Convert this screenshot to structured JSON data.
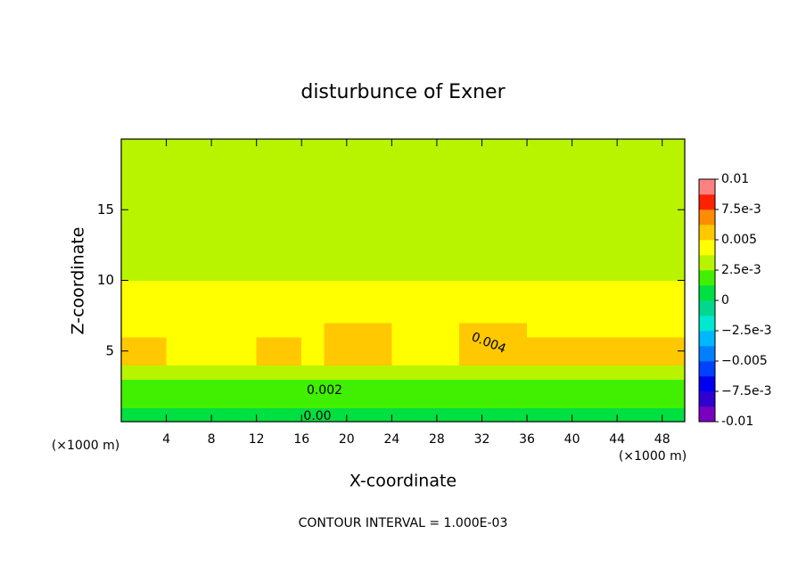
{
  "chart_data": {
    "type": "contour",
    "title": "disturbunce of Exner",
    "x_label": "X-coordinate",
    "y_label": "Z-coordinate",
    "x_unit_label": "(×1000 m)",
    "footer": "CONTOUR INTERVAL = 1.000E-03",
    "xlim": [
      0,
      50
    ],
    "ylim": [
      0,
      20
    ],
    "xticks": [
      4,
      8,
      12,
      16,
      20,
      24,
      28,
      32,
      36,
      40,
      44,
      48
    ],
    "yticks": [
      5,
      10,
      15
    ],
    "x": [
      1,
      3,
      5,
      7,
      9,
      11,
      13,
      15,
      17,
      19,
      21,
      23,
      25,
      27,
      29,
      31,
      33,
      35,
      37,
      39,
      41,
      43,
      45,
      47,
      49
    ],
    "y": [
      0.5,
      1.5,
      2.5,
      3.5,
      4.5,
      5.5,
      6.5,
      7.5,
      8.5,
      9.5,
      10.5,
      11.5,
      12.5,
      13.5,
      14.5,
      15.5,
      16.5,
      17.5,
      18.5,
      19.5
    ],
    "z": [
      [
        0.0004,
        0.0004,
        0.0004,
        0.0004,
        0.0004,
        0.0004,
        0.0004,
        0.0004,
        0.0004,
        0.0004,
        0.0004,
        0.0004,
        0.0004,
        0.0004,
        0.0004,
        0.0004,
        0.0004,
        0.0004,
        0.0004,
        0.0004,
        0.0004,
        0.0004,
        0.0004,
        0.0004,
        0.0004
      ],
      [
        0.0013,
        0.0013,
        0.0013,
        0.0013,
        0.0013,
        0.0013,
        0.0013,
        0.0013,
        0.0013,
        0.0013,
        0.0013,
        0.0013,
        0.0013,
        0.0013,
        0.0013,
        0.0013,
        0.0013,
        0.0013,
        0.0013,
        0.0013,
        0.0013,
        0.0013,
        0.0013,
        0.0013,
        0.0013
      ],
      [
        0.0024,
        0.0024,
        0.0024,
        0.0024,
        0.0024,
        0.0024,
        0.0024,
        0.0024,
        0.0024,
        0.0024,
        0.0024,
        0.0024,
        0.0024,
        0.0024,
        0.0024,
        0.0024,
        0.0024,
        0.0024,
        0.0024,
        0.0024,
        0.0024,
        0.0024,
        0.0024,
        0.0024,
        0.0024
      ],
      [
        0.0036,
        0.0036,
        0.0036,
        0.0036,
        0.0036,
        0.0036,
        0.0036,
        0.0036,
        0.0036,
        0.0036,
        0.0036,
        0.0036,
        0.0036,
        0.0036,
        0.0036,
        0.0036,
        0.0036,
        0.0036,
        0.0036,
        0.0036,
        0.0036,
        0.0036,
        0.0036,
        0.0036,
        0.0036
      ],
      [
        0.0053,
        0.0053,
        0.0045,
        0.0045,
        0.0045,
        0.0045,
        0.0052,
        0.0052,
        0.0045,
        0.0054,
        0.0054,
        0.0054,
        0.0045,
        0.0045,
        0.0045,
        0.0053,
        0.0053,
        0.0053,
        0.0053,
        0.0053,
        0.0053,
        0.0053,
        0.0053,
        0.0053,
        0.0053
      ],
      [
        0.0053,
        0.0053,
        0.0045,
        0.0045,
        0.0045,
        0.0045,
        0.0052,
        0.0052,
        0.0045,
        0.0054,
        0.0054,
        0.0054,
        0.0045,
        0.0045,
        0.0045,
        0.0053,
        0.0053,
        0.0053,
        0.0053,
        0.0053,
        0.0053,
        0.0053,
        0.0053,
        0.0053,
        0.0053
      ],
      [
        0.0046,
        0.0046,
        0.0045,
        0.0045,
        0.0045,
        0.0045,
        0.0045,
        0.0045,
        0.0045,
        0.0052,
        0.0052,
        0.0052,
        0.0045,
        0.0045,
        0.0045,
        0.0051,
        0.0051,
        0.0051,
        0.0045,
        0.0045,
        0.0045,
        0.0045,
        0.0045,
        0.0045,
        0.0045
      ],
      [
        0.0043,
        0.0043,
        0.0043,
        0.0043,
        0.0043,
        0.0043,
        0.0043,
        0.0043,
        0.0043,
        0.0043,
        0.0043,
        0.0043,
        0.0043,
        0.0043,
        0.0043,
        0.0043,
        0.0043,
        0.0043,
        0.0043,
        0.0043,
        0.0043,
        0.0043,
        0.0043,
        0.0043,
        0.0043
      ],
      [
        0.0043,
        0.0043,
        0.0043,
        0.0043,
        0.0043,
        0.0043,
        0.0043,
        0.0043,
        0.0043,
        0.0043,
        0.0043,
        0.0043,
        0.0043,
        0.0043,
        0.0043,
        0.0043,
        0.0043,
        0.0043,
        0.0043,
        0.0043,
        0.0043,
        0.0043,
        0.0043,
        0.0043,
        0.0043
      ],
      [
        0.0038,
        0.0038,
        0.0038,
        0.0038,
        0.0038,
        0.0038,
        0.0038,
        0.0038,
        0.0038,
        0.0038,
        0.0038,
        0.0038,
        0.0038,
        0.0038,
        0.0038,
        0.0038,
        0.0038,
        0.0038,
        0.0038,
        0.0038,
        0.0038,
        0.0038,
        0.0038,
        0.0038,
        0.0038
      ],
      [
        0.0034,
        0.0034,
        0.0034,
        0.0034,
        0.0034,
        0.0034,
        0.0034,
        0.0034,
        0.0034,
        0.0034,
        0.0034,
        0.0034,
        0.0034,
        0.0034,
        0.0034,
        0.0034,
        0.0034,
        0.0034,
        0.0034,
        0.0034,
        0.0034,
        0.0034,
        0.0034,
        0.0034,
        0.0034
      ],
      [
        0.0034,
        0.0034,
        0.0034,
        0.0034,
        0.0034,
        0.0034,
        0.0034,
        0.0034,
        0.0034,
        0.0034,
        0.0034,
        0.0034,
        0.0034,
        0.0034,
        0.0034,
        0.0034,
        0.0034,
        0.0034,
        0.0034,
        0.0034,
        0.0034,
        0.0034,
        0.0034,
        0.0034,
        0.0034
      ],
      [
        0.003,
        0.003,
        0.003,
        0.003,
        0.003,
        0.003,
        0.003,
        0.003,
        0.003,
        0.003,
        0.003,
        0.003,
        0.003,
        0.003,
        0.003,
        0.003,
        0.003,
        0.003,
        0.003,
        0.003,
        0.003,
        0.003,
        0.003,
        0.003,
        0.003
      ],
      [
        0.0028,
        0.0028,
        0.0028,
        0.0028,
        0.0028,
        0.0028,
        0.0028,
        0.0028,
        0.0028,
        0.0028,
        0.0028,
        0.0028,
        0.0028,
        0.0028,
        0.0028,
        0.0028,
        0.0028,
        0.0028,
        0.0028,
        0.0028,
        0.0028,
        0.0028,
        0.0028,
        0.0028,
        0.0028
      ],
      [
        0.0028,
        0.0028,
        0.0028,
        0.0028,
        0.0028,
        0.0028,
        0.0028,
        0.0028,
        0.0028,
        0.0028,
        0.0028,
        0.0028,
        0.0028,
        0.0028,
        0.0028,
        0.0028,
        0.0028,
        0.0028,
        0.0028,
        0.0028,
        0.0028,
        0.0028,
        0.0028,
        0.0028,
        0.0028
      ],
      [
        0.0028,
        0.0028,
        0.0028,
        0.0028,
        0.0028,
        0.0028,
        0.0028,
        0.0028,
        0.0028,
        0.0028,
        0.0028,
        0.0028,
        0.0028,
        0.0028,
        0.0028,
        0.0028,
        0.0028,
        0.0028,
        0.0028,
        0.0028,
        0.0028,
        0.0028,
        0.0028,
        0.0028,
        0.0028
      ],
      [
        0.0028,
        0.0028,
        0.0028,
        0.0028,
        0.0028,
        0.0028,
        0.0028,
        0.0028,
        0.0028,
        0.0028,
        0.0028,
        0.0028,
        0.0028,
        0.0028,
        0.0028,
        0.0028,
        0.0028,
        0.0028,
        0.0028,
        0.0028,
        0.0028,
        0.0028,
        0.0028,
        0.0028,
        0.0028
      ],
      [
        0.0027,
        0.0027,
        0.0027,
        0.0027,
        0.0027,
        0.0027,
        0.0027,
        0.0027,
        0.0027,
        0.0027,
        0.0027,
        0.0027,
        0.0027,
        0.0027,
        0.0027,
        0.0027,
        0.0027,
        0.0027,
        0.0027,
        0.0027,
        0.0027,
        0.0027,
        0.0027,
        0.0027,
        0.0027
      ],
      [
        0.0027,
        0.0027,
        0.0027,
        0.0027,
        0.0027,
        0.0027,
        0.0027,
        0.0027,
        0.0027,
        0.0027,
        0.0027,
        0.0027,
        0.0027,
        0.0027,
        0.0027,
        0.0027,
        0.0027,
        0.0027,
        0.0027,
        0.0027,
        0.0027,
        0.0027,
        0.0027,
        0.0027,
        0.0027
      ],
      [
        0.0027,
        0.0027,
        0.0027,
        0.0027,
        0.0027,
        0.0027,
        0.0027,
        0.0027,
        0.0027,
        0.0027,
        0.0027,
        0.0027,
        0.0027,
        0.0027,
        0.0027,
        0.0027,
        0.0027,
        0.0027,
        0.0027,
        0.0027,
        0.0027,
        0.0027,
        0.0027,
        0.0027,
        0.0027
      ]
    ],
    "colorbar_lim": [
      -0.01,
      0.01
    ],
    "colorbar_ticks": [
      -0.01,
      {
        "value": -0.0075,
        "label": "−7.5e-3"
      },
      {
        "value": -0.005,
        "label": "−0.005"
      },
      {
        "value": -0.0025,
        "label": "−2.5e-3"
      },
      0,
      {
        "value": 0.0025,
        "label": "2.5e-3"
      },
      0.005,
      {
        "value": 0.0075,
        "label": "7.5e-3"
      },
      0.01
    ],
    "colors": [
      "#7a00c0",
      "#3000d0",
      "#0000f0",
      "#0040ff",
      "#0080ff",
      "#00b8ff",
      "#00e8d0",
      "#00d890",
      "#00e040",
      "#40f000",
      "#b8f400",
      "#ffff00",
      "#ffc800",
      "#ff8c00",
      "#ff2000",
      "#ff8080"
    ],
    "contour_labels": [
      "0.004",
      "0.002",
      "0.00"
    ]
  }
}
